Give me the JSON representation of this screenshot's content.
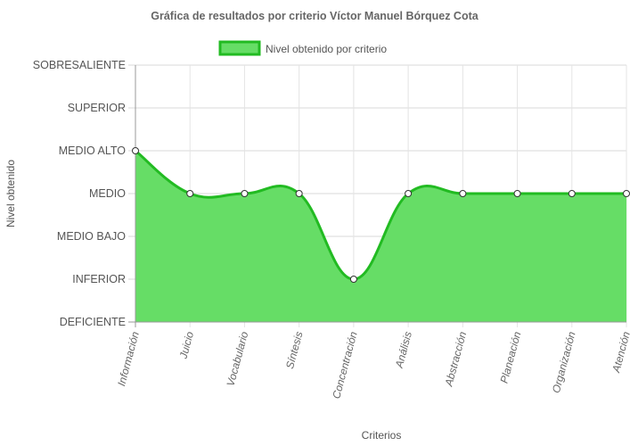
{
  "chart_data": {
    "type": "area",
    "title": "Gráfica de resultados por criterio Víctor Manuel Bórquez Cota",
    "xlabel": "Criterios",
    "ylabel": "Nivel obtenido",
    "legend_position": "top-center",
    "grid": true,
    "y_levels": [
      "DEFICIENTE",
      "INFERIOR",
      "MEDIO BAJO",
      "MEDIO",
      "MEDIO ALTO",
      "SUPERIOR",
      "SOBRESALIENTE"
    ],
    "ylim": [
      0,
      6
    ],
    "categories": [
      "Información",
      "Juicio",
      "Vocabulario",
      "Síntesis",
      "Concentración",
      "Análisis",
      "Abstracción",
      "Planeación",
      "Organización",
      "Atención"
    ],
    "series": [
      {
        "name": "Nivel obtenido por criterio",
        "values": [
          4,
          3,
          3,
          3,
          1,
          3,
          3,
          3,
          3,
          3
        ],
        "labels": [
          "MEDIO ALTO",
          "MEDIO",
          "MEDIO",
          "MEDIO",
          "INFERIOR",
          "MEDIO",
          "MEDIO",
          "MEDIO",
          "MEDIO",
          "MEDIO"
        ],
        "fill_color": "#66dd66",
        "line_color": "#22bb22"
      }
    ]
  }
}
